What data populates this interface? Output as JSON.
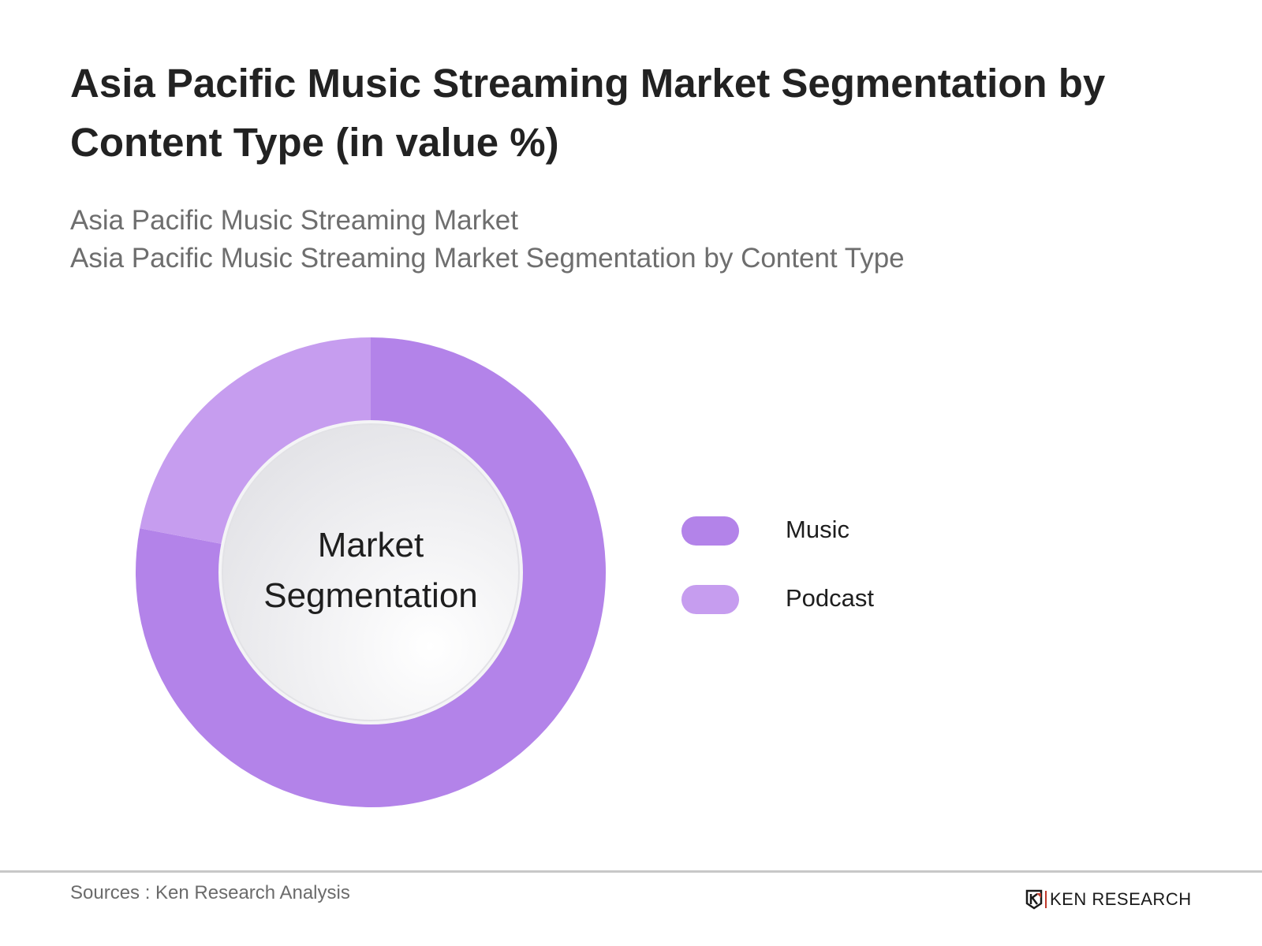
{
  "header": {
    "title": "Asia Pacific Music Streaming Market Segmentation by Content Type (in value %)",
    "subtitle_line1": "Asia Pacific Music Streaming Market",
    "subtitle_line2": "Asia Pacific Music Streaming Market Segmentation by Content Type"
  },
  "center_label": {
    "line1": "Market",
    "line2": "Segmentation"
  },
  "legend": [
    {
      "label": "Music",
      "color": "#b383e9"
    },
    {
      "label": "Podcast",
      "color": "#c69def"
    }
  ],
  "footer": {
    "source": "Sources : Ken Research Analysis",
    "logo_text": "KEN RESEARCH"
  },
  "chart_data": {
    "type": "pie",
    "subtype": "donut",
    "title": "Asia Pacific Music Streaming Market Segmentation by Content Type (in value %)",
    "subtitle": "Asia Pacific Music Streaming Market / Asia Pacific Music Streaming Market Segmentation by Content Type",
    "center_text": "Market Segmentation",
    "categories": [
      "Music",
      "Podcast"
    ],
    "values": [
      78,
      22
    ],
    "colors": [
      "#b383e9",
      "#c69def"
    ],
    "legend_position": "right",
    "data_labels": false,
    "source": "Sources : Ken Research Analysis"
  }
}
